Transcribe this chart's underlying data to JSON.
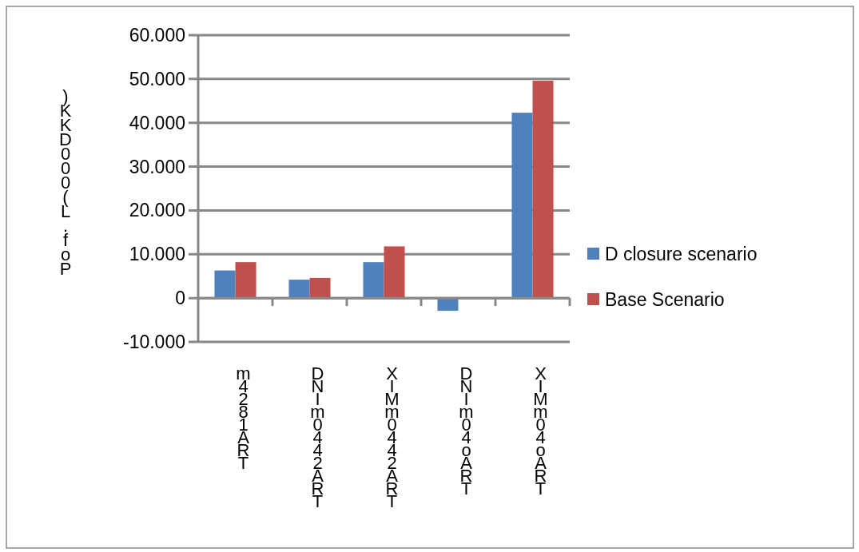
{
  "chart_data": {
    "type": "bar",
    "ylabel": ")KKD000(L.foP",
    "categories": [
      "m4281ART",
      "DNIm0442ART",
      "XIMm0442ART",
      "DNIm04oART",
      "XIMm04oART"
    ],
    "series": [
      {
        "name": "D closure scenario",
        "color": "#4f81bd",
        "values": [
          6300,
          4200,
          8200,
          -2900,
          42300
        ]
      },
      {
        "name": "Base Scenario",
        "color": "#c0504d",
        "values": [
          8200,
          4600,
          11800,
          null,
          49600
        ]
      }
    ],
    "ylim": [
      -10000,
      60000
    ],
    "yticks": [
      {
        "value": -10000,
        "label": "-10.000"
      },
      0,
      {
        "value": 10000,
        "label": "10.000"
      },
      {
        "value": 20000,
        "label": "20.000"
      },
      {
        "value": 30000,
        "label": "30.000"
      },
      {
        "value": 40000,
        "label": "40.000"
      },
      {
        "value": 50000,
        "label": "50.000"
      },
      {
        "value": 60000,
        "label": "60.000"
      }
    ],
    "grid": "y",
    "legend": "right"
  }
}
